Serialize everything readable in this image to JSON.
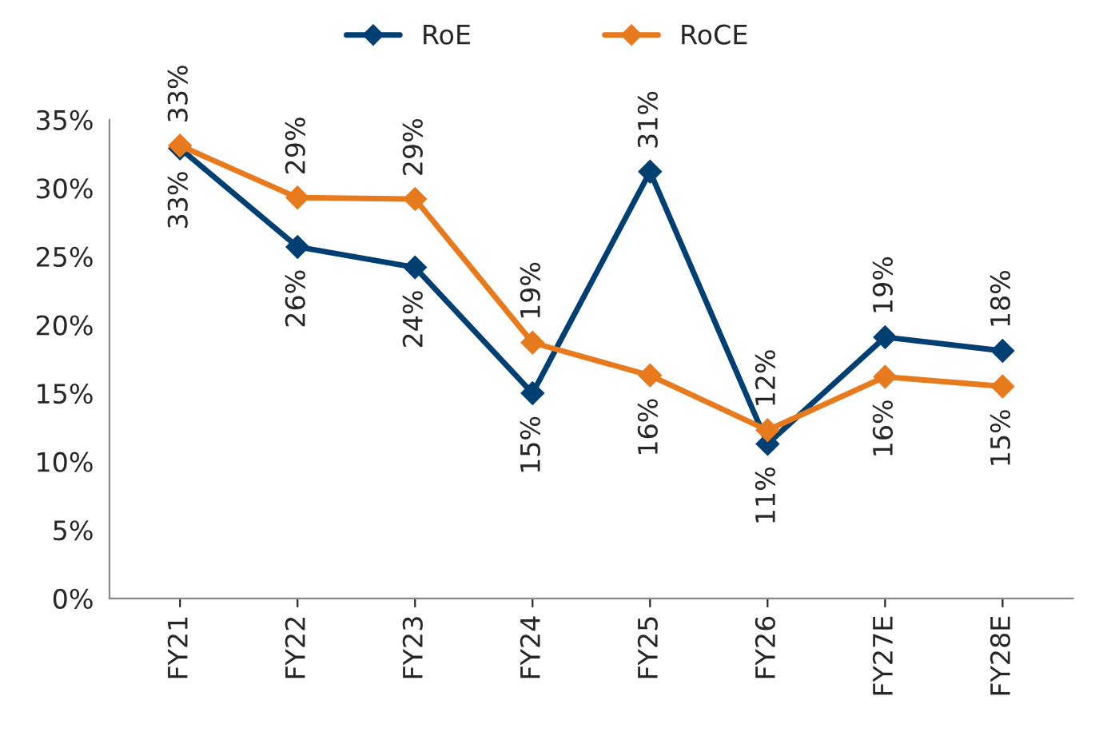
{
  "chart_data": {
    "type": "line",
    "categories": [
      "FY21",
      "FY22",
      "FY23",
      "FY24",
      "FY25",
      "FY26",
      "FY27E",
      "FY28E"
    ],
    "series": [
      {
        "name": "RoE",
        "color": "#003f72",
        "values": [
          32.9,
          25.7,
          24.2,
          15.0,
          31.2,
          11.3,
          19.1,
          18.1
        ],
        "value_labels": [
          "33%",
          "26%",
          "24%",
          "15%",
          "31%",
          "11%",
          "19%",
          "18%"
        ]
      },
      {
        "name": "RoCE",
        "color": "#e87a1e",
        "values": [
          33.1,
          29.3,
          29.2,
          18.7,
          16.3,
          12.3,
          16.2,
          15.5
        ],
        "value_labels": [
          "33%",
          "29%",
          "29%",
          "19%",
          "16%",
          "12%",
          "16%",
          "15%"
        ]
      }
    ],
    "ylim": [
      0,
      35
    ],
    "yticks": [
      {
        "value": 0,
        "label": "0%"
      },
      {
        "value": 5,
        "label": "5%"
      },
      {
        "value": 10,
        "label": "10%"
      },
      {
        "value": 15,
        "label": "15%"
      },
      {
        "value": 20,
        "label": "20%"
      },
      {
        "value": 25,
        "label": "25%"
      },
      {
        "value": 30,
        "label": "30%"
      },
      {
        "value": 35,
        "label": "35%"
      }
    ],
    "grid": false,
    "legend": "top",
    "marker": "diamond",
    "line_style": "solid"
  }
}
